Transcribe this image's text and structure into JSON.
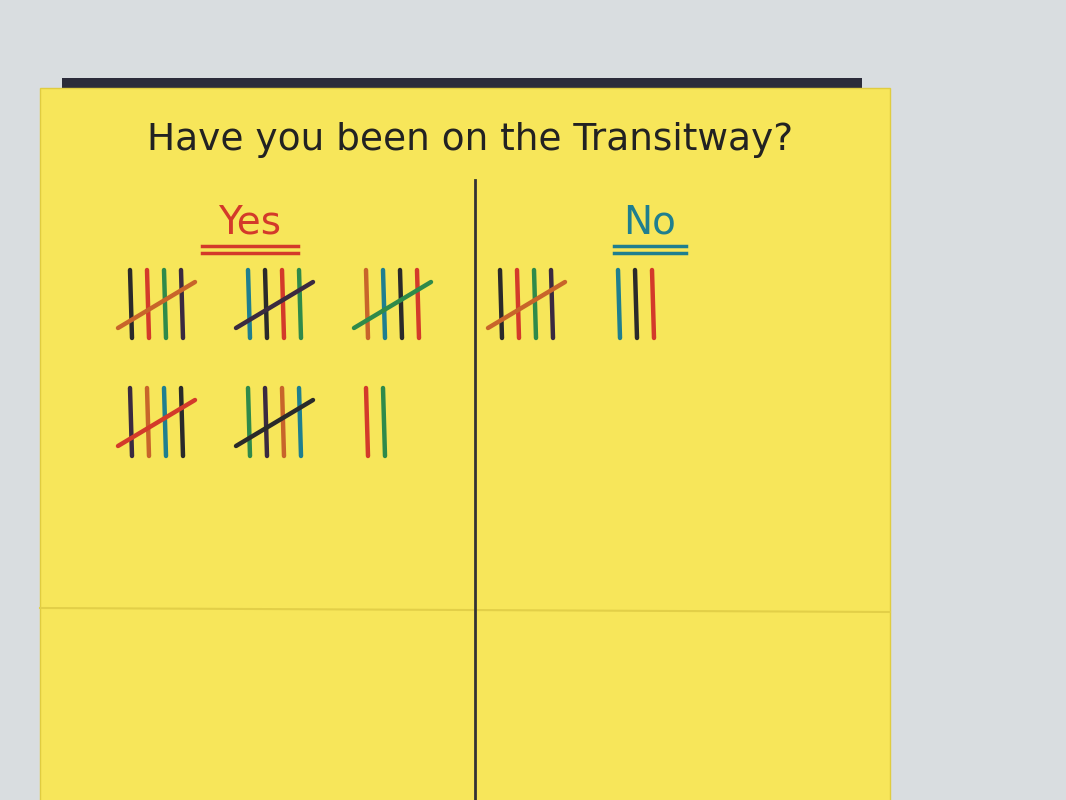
{
  "chart_data": {
    "type": "tally",
    "title": "Have you been on the Transitway?",
    "categories": [
      "Yes",
      "No"
    ],
    "values": [
      27,
      8
    ],
    "colors": [
      "#d33a2a",
      "#1f7f8f"
    ]
  }
}
